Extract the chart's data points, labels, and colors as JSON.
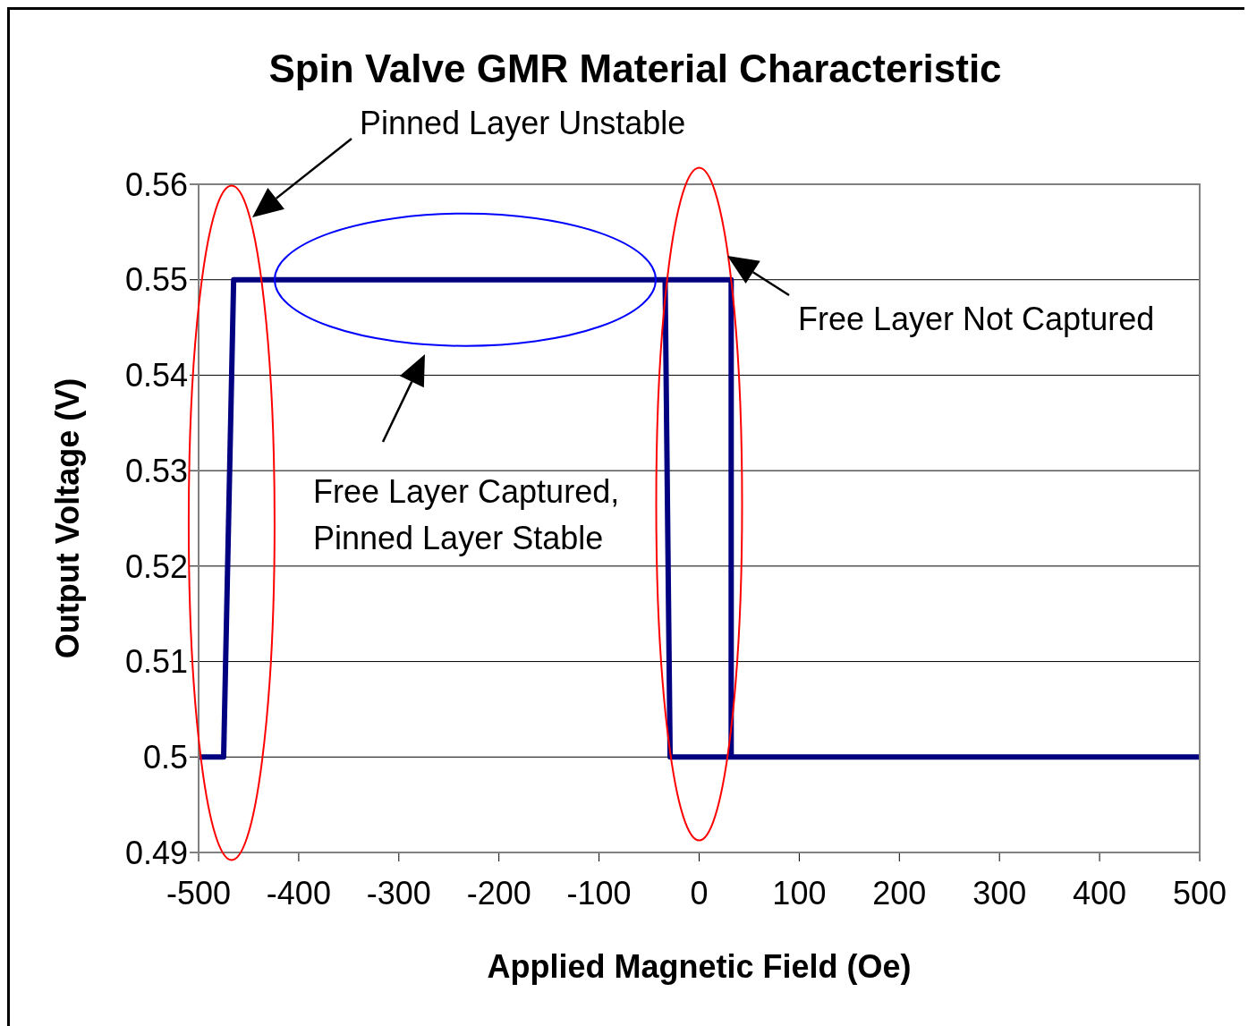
{
  "chart_data": {
    "type": "line",
    "title": "Spin Valve GMR Material Characteristic",
    "xlabel": "Applied Magnetic Field (Oe)",
    "ylabel": "Output Voltage (V)",
    "x": [
      -500,
      -475,
      -465,
      32,
      32,
      500,
      -29,
      -34
    ],
    "series": [
      {
        "color": "#000080",
        "values": [
          0.5,
          0.5,
          0.55,
          0.55,
          0.5,
          0.5,
          0.5,
          0.55
        ]
      }
    ],
    "xlim": [
      -500,
      500
    ],
    "xticks": [
      -500,
      -400,
      -300,
      -200,
      -100,
      0,
      100,
      200,
      300,
      400,
      500
    ],
    "ylim": [
      0.49,
      0.56
    ],
    "yticks": [
      0.49,
      0.5,
      0.51,
      0.52,
      0.53,
      0.54,
      0.55,
      0.56
    ],
    "grid": "y",
    "marker": "none",
    "line_style": "solid",
    "legend": false,
    "annotations": [
      "Pinned Layer Unstable",
      "Free Layer Not Captured",
      "Free Layer Captured,\nPinned Layer Stable"
    ]
  }
}
